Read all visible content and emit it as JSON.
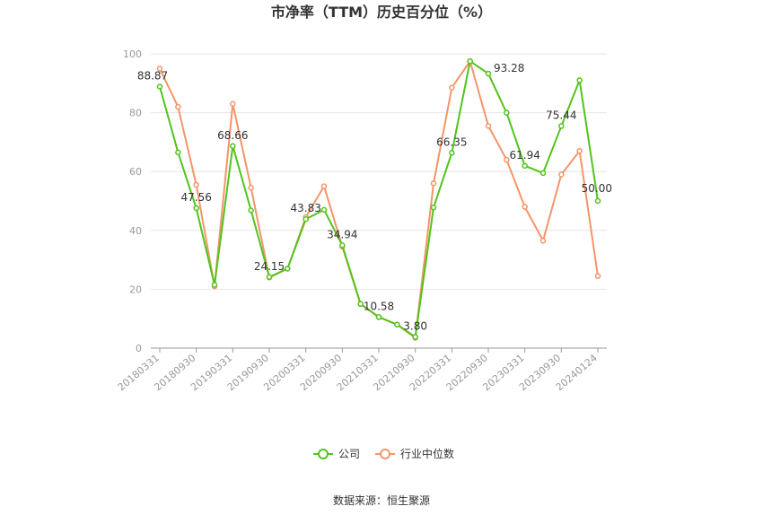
{
  "chart_data": {
    "type": "line",
    "title": "市净率（TTM）历史百分位（%）",
    "x": [
      "20180331",
      "20180630",
      "20180930",
      "20181231",
      "20190331",
      "20190630",
      "20190930",
      "20191231",
      "20200331",
      "20200630",
      "20200930",
      "20201231",
      "20210331",
      "20210630",
      "20210930",
      "20211231",
      "20220331",
      "20220630",
      "20220930",
      "20221231",
      "20230331",
      "20230630",
      "20230930",
      "20231231",
      "20240124"
    ],
    "x_tick_labels": [
      "20180331",
      "20180930",
      "20190331",
      "20190930",
      "20200331",
      "20200930",
      "20210331",
      "20210930",
      "20220331",
      "20220930",
      "20230331",
      "20230930",
      "20240124"
    ],
    "ylim": [
      0,
      100
    ],
    "y_ticks": [
      "0",
      "20",
      "40",
      "60",
      "80",
      "100"
    ],
    "grid": true,
    "legend_position": "bottom",
    "series": [
      {
        "name": "公司",
        "color": "#52c41a",
        "values": [
          88.87,
          66.5,
          47.56,
          21.5,
          68.66,
          46.8,
          24.15,
          27.0,
          43.83,
          47.0,
          34.94,
          15.0,
          10.58,
          8.0,
          3.8,
          47.8,
          66.35,
          97.5,
          93.28,
          80.0,
          61.94,
          59.5,
          75.44,
          91.0,
          50.0
        ]
      },
      {
        "name": "行业中位数",
        "color": "#f4956a",
        "values": [
          95.0,
          82.0,
          55.5,
          21.0,
          83.0,
          54.5,
          24.0,
          27.0,
          44.5,
          55.0,
          34.5,
          15.0,
          10.5,
          8.0,
          3.5,
          56.0,
          88.5,
          97.5,
          75.5,
          64.0,
          48.0,
          36.5,
          59.0,
          67.0,
          24.5
        ]
      }
    ],
    "data_labels": [
      {
        "index": 0,
        "text": "88.87"
      },
      {
        "index": 2,
        "text": "47.56"
      },
      {
        "index": 4,
        "text": "68.66"
      },
      {
        "index": 6,
        "text": "24.15"
      },
      {
        "index": 8,
        "text": "43.83"
      },
      {
        "index": 10,
        "text": "34.94"
      },
      {
        "index": 12,
        "text": "10.58"
      },
      {
        "index": 14,
        "text": "3.80"
      },
      {
        "index": 16,
        "text": "66.35"
      },
      {
        "index": 18,
        "text": "93.28"
      },
      {
        "index": 20,
        "text": "61.94"
      },
      {
        "index": 22,
        "text": "75.44"
      },
      {
        "index": 24,
        "text": "50.00"
      }
    ]
  },
  "source_text": "数据来源：恒生聚源"
}
